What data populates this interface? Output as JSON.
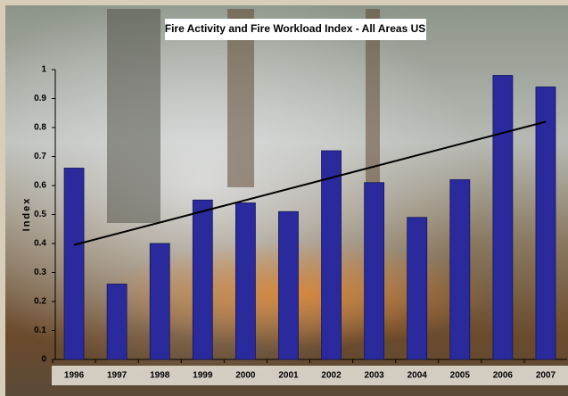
{
  "chart_data": {
    "type": "bar",
    "title": "Fire Activity and Fire Workload Index - All Areas US",
    "y_label": "Index",
    "categories": [
      "1996",
      "1997",
      "1998",
      "1999",
      "2000",
      "2001",
      "2002",
      "2003",
      "2004",
      "2005",
      "2006",
      "2007"
    ],
    "values": [
      0.66,
      0.26,
      0.4,
      0.55,
      0.54,
      0.51,
      0.72,
      0.61,
      0.49,
      0.62,
      0.98,
      0.94
    ],
    "color": "#2a2a9c",
    "trend": [
      0.395,
      0.82
    ],
    "trend_color": "#000000",
    "ylim": [
      0,
      1
    ],
    "yticks": [
      0,
      0.1,
      0.2,
      0.3,
      0.4,
      0.5,
      0.6,
      0.7,
      0.8,
      0.9,
      1
    ]
  }
}
